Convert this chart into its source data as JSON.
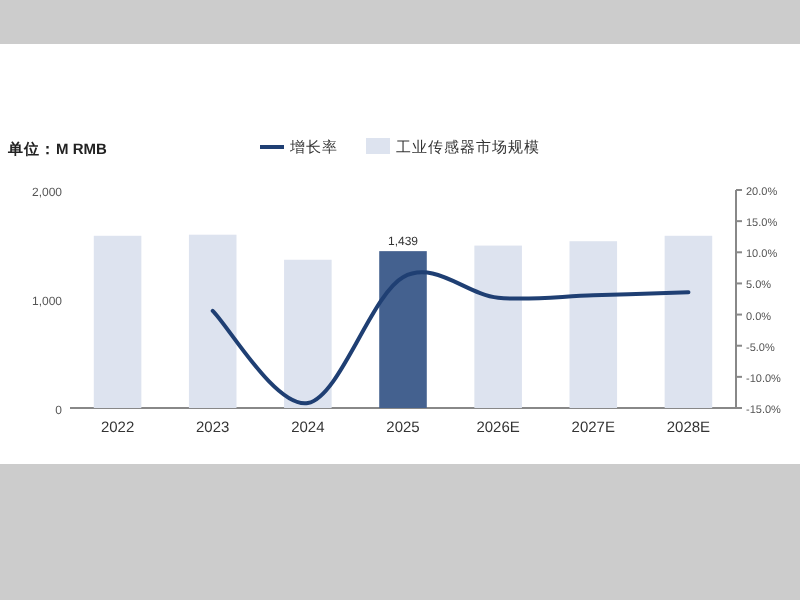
{
  "chart_data": {
    "type": "bar",
    "ylabel": "单位：M RMB",
    "categories": [
      "2022",
      "2023",
      "2024",
      "2025",
      "2026E",
      "2027E",
      "2028E"
    ],
    "series": [
      {
        "name": "增长率",
        "type": "line",
        "axis": "y2",
        "color": "#1f3f73",
        "values": [
          null,
          0.6,
          -14.2,
          6.0,
          2.7,
          3.1,
          3.6
        ]
      },
      {
        "name": "工业传感器市场规模",
        "color": "#dde3ef",
        "colors": [
          "#dde3ef",
          "#dde3ef",
          "#dde3ef",
          "#44618f",
          "#dde3ef",
          "#dde3ef",
          "#dde3ef"
        ],
        "values": [
          1580,
          1590,
          1360,
          1439,
          1490,
          1530,
          1580
        ],
        "value_labels": [
          null,
          null,
          null,
          "1,439",
          null,
          null,
          null
        ]
      }
    ],
    "ylim": [
      0,
      2000
    ],
    "yticks": [
      {
        "value": 0,
        "label": "0"
      },
      {
        "value": 1000,
        "label": "1,000"
      },
      {
        "value": 2000,
        "label": "2,000"
      }
    ],
    "y2lim": [
      -15,
      20
    ],
    "y2ticks": [
      {
        "value": -15,
        "label": "-15.0%"
      },
      {
        "value": -10,
        "label": "-10.0%"
      },
      {
        "value": -5,
        "label": "-5.0%"
      },
      {
        "value": 0,
        "label": "0.0%"
      },
      {
        "value": 5,
        "label": "5.0%"
      },
      {
        "value": 10,
        "label": "10.0%"
      },
      {
        "value": 15,
        "label": "15.0%"
      },
      {
        "value": 20,
        "label": "20.0%"
      }
    ],
    "legend": "top",
    "grid": false
  }
}
